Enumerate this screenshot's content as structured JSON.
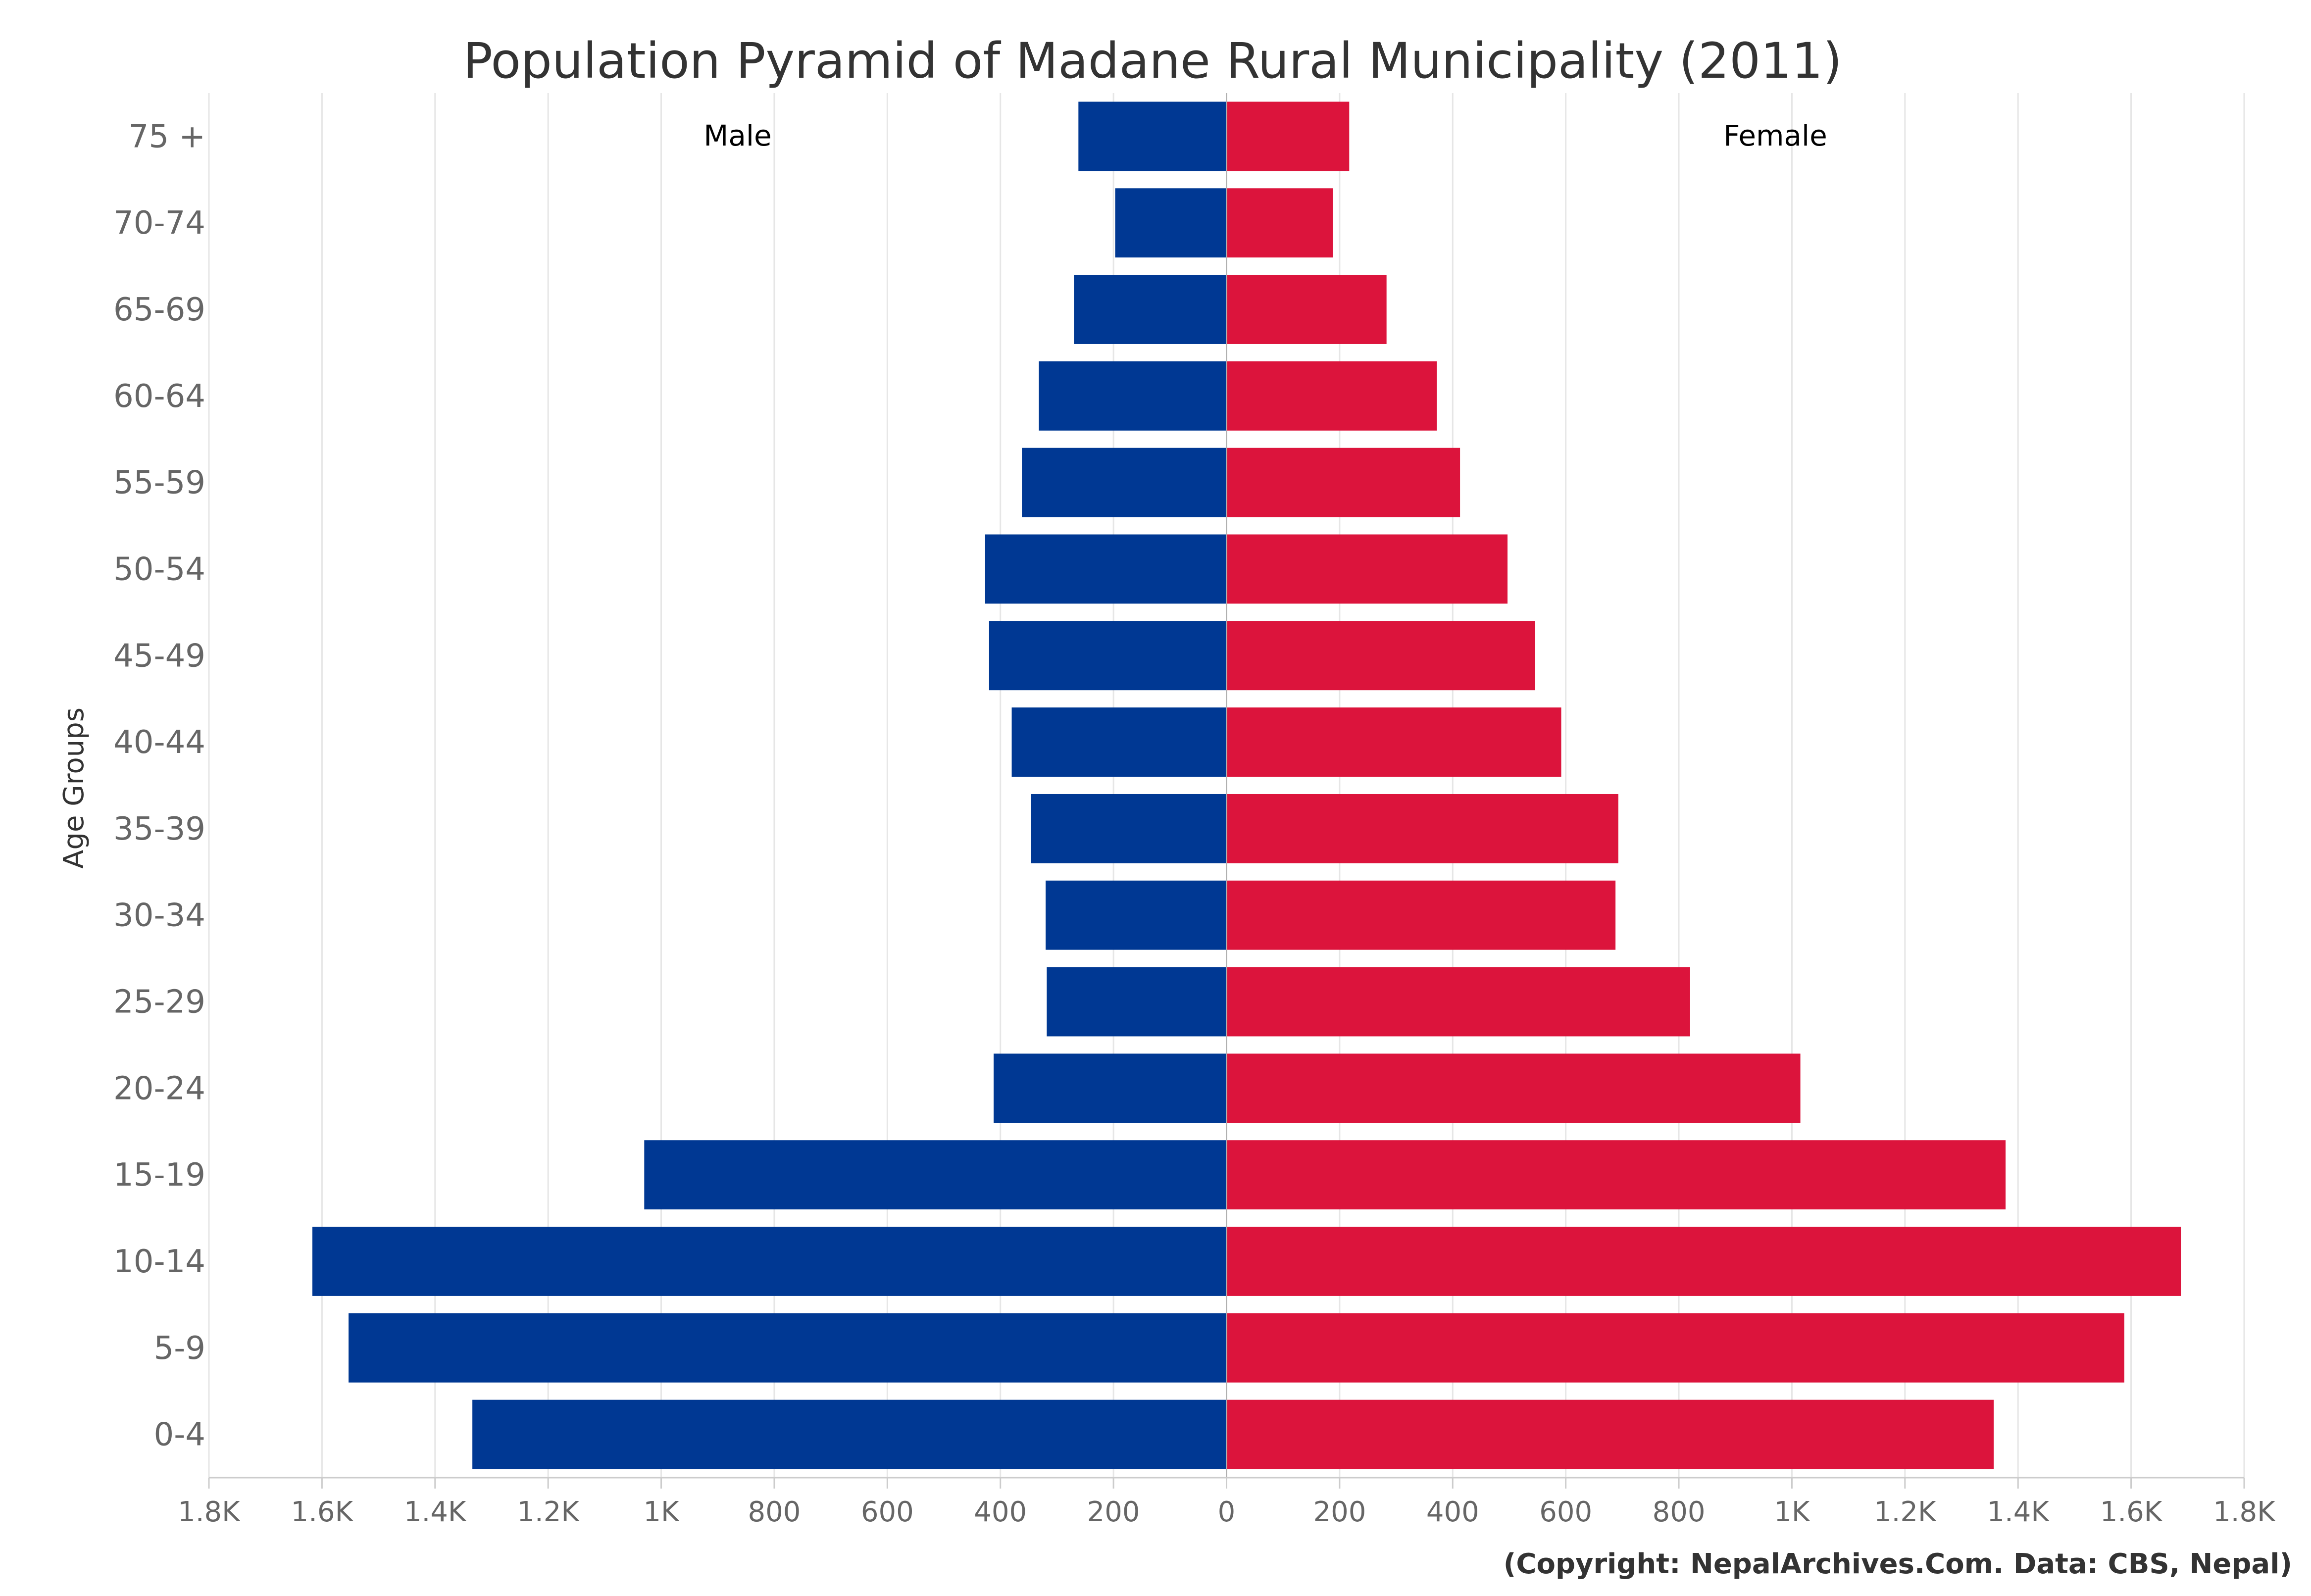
{
  "chart_data": {
    "type": "bar",
    "orientation": "horizontal",
    "title": "Population Pyramid of Madane Rural Municipality (2011)",
    "ylabel": "Age Groups",
    "xlabel": "",
    "categories": [
      "75 +",
      "70-74",
      "65-69",
      "60-64",
      "55-59",
      "50-54",
      "45-49",
      "40-44",
      "35-39",
      "30-34",
      "25-29",
      "20-24",
      "15-19",
      "10-14",
      "5-9",
      "0-4"
    ],
    "series": [
      {
        "name": "Male",
        "side": "left",
        "color": "#003893",
        "values": [
          262,
          197,
          270,
          332,
          362,
          427,
          420,
          380,
          346,
          320,
          318,
          412,
          1030,
          1617,
          1553,
          1334
        ]
      },
      {
        "name": "Female",
        "side": "right",
        "color": "#DC143C",
        "values": [
          217,
          188,
          283,
          372,
          413,
          497,
          546,
          592,
          693,
          688,
          820,
          1015,
          1378,
          1688,
          1588,
          1357
        ]
      }
    ],
    "xlim": [
      -1800,
      1800
    ],
    "x_ticks": [
      -1800,
      -1600,
      -1400,
      -1200,
      -1000,
      -800,
      -600,
      -400,
      -200,
      0,
      200,
      400,
      600,
      800,
      1000,
      1200,
      1400,
      1600,
      1800
    ],
    "x_tick_labels": [
      "1.8K",
      "1.6K",
      "1.4K",
      "1.2K",
      "1K",
      "800",
      "600",
      "400",
      "200",
      "0",
      "200",
      "400",
      "600",
      "800",
      "1K",
      "1.2K",
      "1.4K",
      "1.6K",
      "1.8K"
    ],
    "grid": true,
    "legend": "inline"
  },
  "credit": "(Copyright: NepalArchives.Com. Data: CBS, Nepal)"
}
